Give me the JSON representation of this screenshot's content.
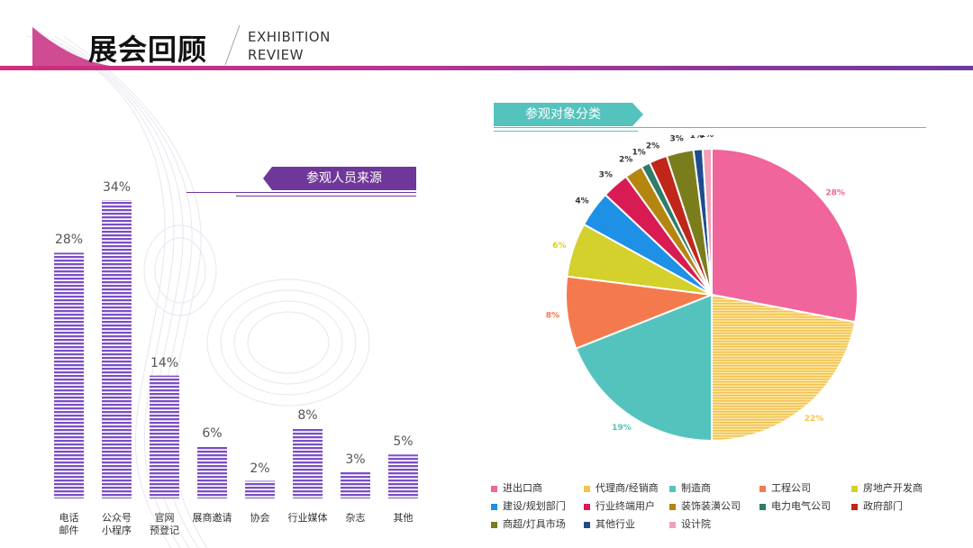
{
  "header": {
    "title": "展会回顾",
    "subtitle_line1": "EXHIBITION",
    "subtitle_line2": "REVIEW"
  },
  "colors": {
    "purple": "#7b4fc4",
    "accent_teal": "#55c3bd",
    "banner_purple": "#6f3799"
  },
  "left_chart_title": "参观人员来源",
  "right_chart_title": "参观对象分类",
  "chart_data": [
    {
      "type": "bar",
      "title": "参观人员来源",
      "categories": [
        "电话\n邮件",
        "公众号\n小程序",
        "官网\n预登记",
        "展商邀请",
        "协会",
        "行业媒体",
        "杂志",
        "其他"
      ],
      "values": [
        28,
        34,
        14,
        6,
        2,
        8,
        3,
        5
      ],
      "value_labels": [
        "28%",
        "34%",
        "14%",
        "6%",
        "2%",
        "8%",
        "3%",
        "5%"
      ],
      "unit": "%",
      "ylim": [
        0,
        34
      ]
    },
    {
      "type": "pie",
      "title": "参观对象分类",
      "slices": [
        {
          "name": "进出口商",
          "value": 28,
          "label": "28%",
          "color": "#f0659b"
        },
        {
          "name": "代理商/经销商",
          "value": 22,
          "label": "22%",
          "color": "#f3c24f"
        },
        {
          "name": "制造商",
          "value": 19,
          "label": "19%",
          "color": "#55c3bd"
        },
        {
          "name": "工程公司",
          "value": 8,
          "label": "8%",
          "color": "#f47a4e"
        },
        {
          "name": "房地产开发商",
          "value": 6,
          "label": "6%",
          "color": "#d4d02c"
        },
        {
          "name": "建设/规划部门",
          "value": 4,
          "label": "4%",
          "color": "#1e90e6"
        },
        {
          "name": "行业终端用户",
          "value": 3,
          "label": "3%",
          "color": "#d81b53"
        },
        {
          "name": "装饰装潢公司",
          "value": 2,
          "label": "2%",
          "color": "#b5860f"
        },
        {
          "name": "电力电气公司",
          "value": 1,
          "label": "1%",
          "color": "#2e7d6a"
        },
        {
          "name": "政府部门",
          "value": 2,
          "label": "2%",
          "color": "#c1261b"
        },
        {
          "name": "商超/灯具市场",
          "value": 3,
          "label": "3%",
          "color": "#7a7d1c"
        },
        {
          "name": "其他行业",
          "value": 1,
          "label": "1%",
          "color": "#1e4d8f"
        },
        {
          "name": "设计院",
          "value": 1,
          "label": "1%",
          "color": "#f2a0b6"
        }
      ]
    }
  ]
}
